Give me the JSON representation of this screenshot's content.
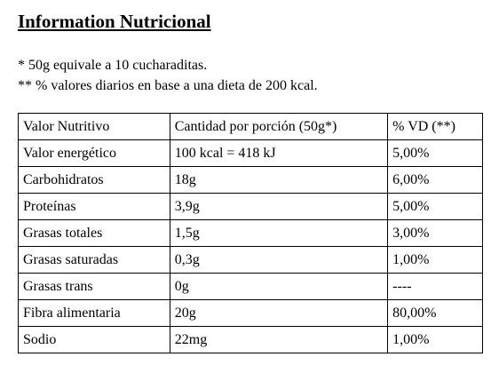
{
  "header": {
    "title": "Information Nutricional"
  },
  "notes": [
    "* 50g equivale a 10 cucharaditas.",
    "** % valores diarios en base a una dieta de 200 kcal."
  ],
  "table": {
    "columns": [
      "Valor Nutritivo",
      "Cantidad por porción (50g*)",
      "% VD (**)"
    ],
    "rows": [
      [
        "Valor energético",
        "100 kcal = 418 kJ",
        "5,00%"
      ],
      [
        "Carbohidratos",
        "18g",
        "6,00%"
      ],
      [
        "Proteínas",
        "3,9g",
        "5,00%"
      ],
      [
        "Grasas totales",
        "1,5g",
        "3,00%"
      ],
      [
        "Grasas saturadas",
        "0,3g",
        "1,00%"
      ],
      [
        "Grasas trans",
        "0g",
        "----"
      ],
      [
        "Fibra alimentaria",
        "20g",
        "80,00%"
      ],
      [
        "Sodio",
        "22mg",
        "1,00%"
      ]
    ]
  }
}
